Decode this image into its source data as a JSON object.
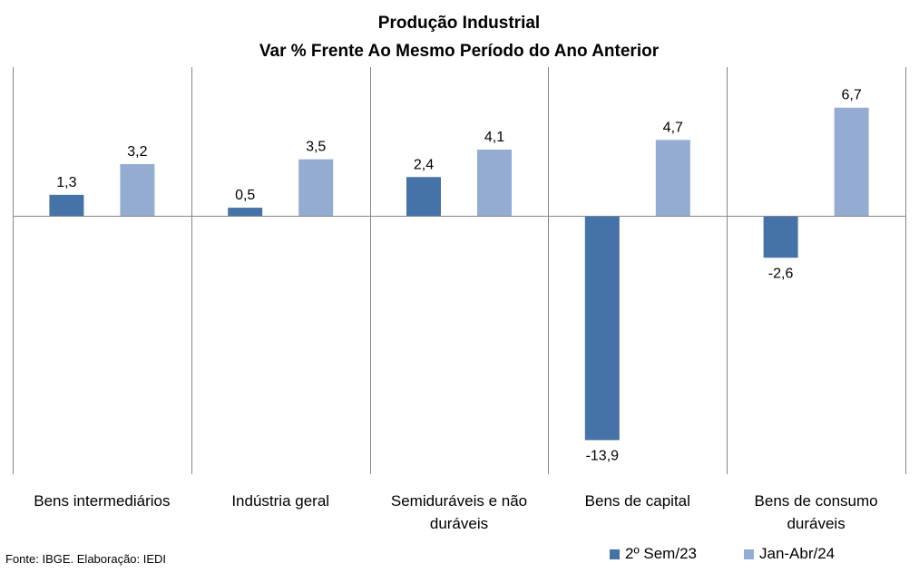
{
  "chart_data": {
    "type": "bar",
    "title": "Produção Industrial",
    "subtitle": "Var % Frente Ao Mesmo Período do Ano Anterior",
    "categories": [
      [
        "Bens intermediários"
      ],
      [
        "Indústria geral"
      ],
      [
        "Semiduráveis e não",
        "duráveis"
      ],
      [
        "Bens de capital"
      ],
      [
        "Bens de consumo",
        "duráveis"
      ]
    ],
    "series": [
      {
        "name": "2º Sem/23",
        "color": "#4572a7",
        "values": [
          1.3,
          0.5,
          2.4,
          -13.9,
          -2.6
        ],
        "labels": [
          "1,3",
          "0,5",
          "2,4",
          "-13,9",
          "-2,6"
        ]
      },
      {
        "name": "Jan-Abr/24",
        "color": "#94abd2",
        "values": [
          3.2,
          3.5,
          4.1,
          4.7,
          6.7
        ],
        "labels": [
          "3,2",
          "3,5",
          "4,1",
          "4,7",
          "6,7"
        ]
      }
    ],
    "ylim": [
      -16,
      9
    ],
    "grid": false,
    "legend_position": "bottom-right"
  },
  "source_note": "Fonte: IBGE. Elaboração: IEDI"
}
